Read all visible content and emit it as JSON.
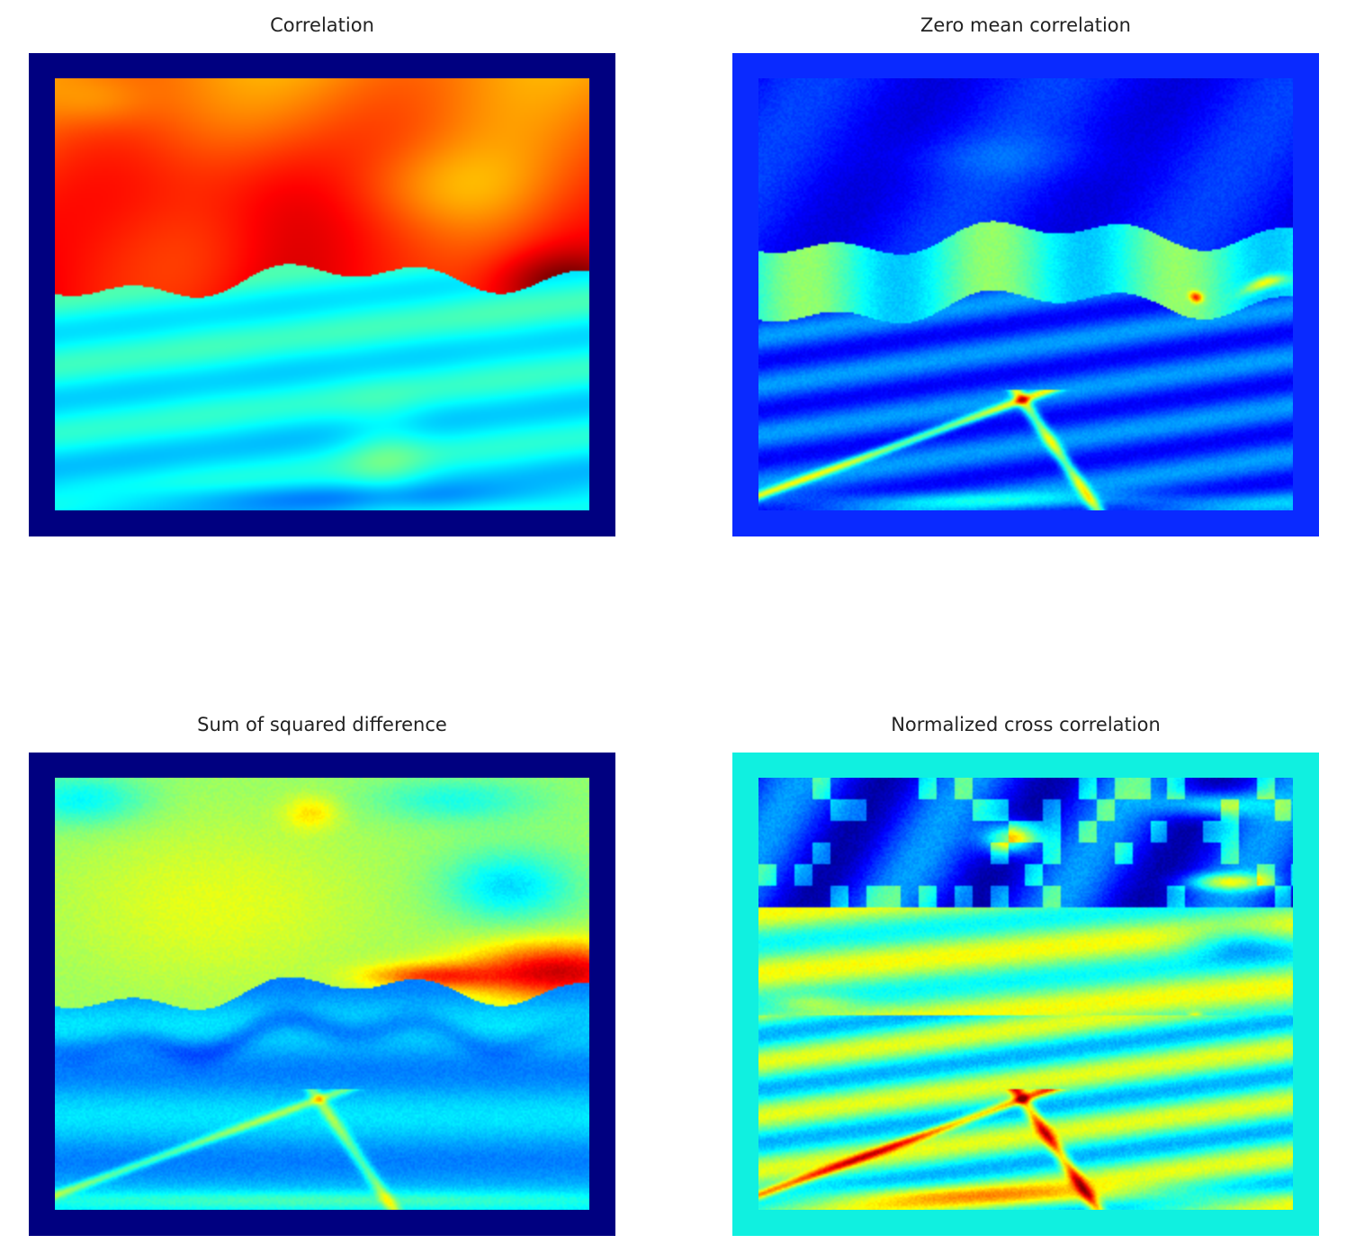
{
  "chart_data": [
    {
      "type": "heatmap",
      "title": "Correlation",
      "xlabel": "",
      "ylabel": "",
      "colormap": "jet",
      "border_color": "#000080",
      "axes": "off",
      "description_levels": {
        "sky_top": 0.72,
        "sky_middle": 0.88,
        "horizon_peak": 0.98,
        "ground": 0.32
      }
    },
    {
      "type": "heatmap",
      "title": "Zero mean correlation",
      "xlabel": "",
      "ylabel": "",
      "colormap": "jet",
      "border_color": "#0a2aff",
      "axes": "off",
      "description_levels": {
        "sky": 0.12,
        "horizon_band": 0.55,
        "hotspot": 0.9,
        "ground": 0.22
      }
    },
    {
      "type": "heatmap",
      "title": "Sum of squared difference",
      "xlabel": "",
      "ylabel": "",
      "colormap": "jet",
      "border_color": "#000080",
      "axes": "off",
      "description_levels": {
        "sky": 0.55,
        "right_hotspot": 0.92,
        "ground": 0.28
      }
    },
    {
      "type": "heatmap",
      "title": "Normalized cross correlation",
      "xlabel": "",
      "ylabel": "",
      "colormap": "jet",
      "border_color": "#10f0e0",
      "axes": "off",
      "description_levels": {
        "sky": 0.15,
        "bands": 0.6,
        "hotspot": 0.9,
        "ground": 0.45
      }
    }
  ]
}
